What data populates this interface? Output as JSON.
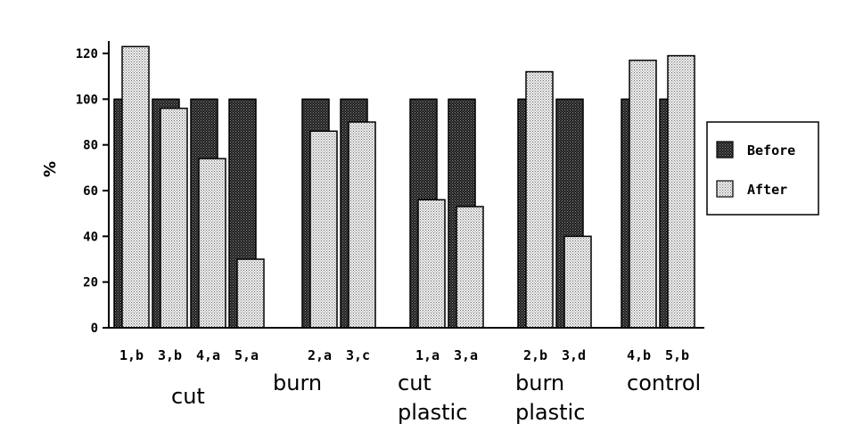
{
  "chart_data": {
    "type": "bar",
    "title": "",
    "xlabel": "",
    "ylabel": "%",
    "ylim": [
      0,
      120
    ],
    "yticks": [
      0,
      20,
      40,
      60,
      80,
      100,
      120
    ],
    "grid": false,
    "legend_position": "right",
    "categories": [
      "1,b",
      "3,b",
      "4,a",
      "5,a",
      "2,a",
      "3,c",
      "1,a",
      "3,a",
      "2,b",
      "3,d",
      "4,b",
      "5,b"
    ],
    "groups": [
      {
        "label_lines": [
          "cut"
        ],
        "categories": [
          "1,b",
          "3,b",
          "4,a",
          "5,a"
        ]
      },
      {
        "label_lines": [
          "burn"
        ],
        "categories": [
          "2,a",
          "3,c"
        ]
      },
      {
        "label_lines": [
          "cut",
          "plastic"
        ],
        "categories": [
          "1,a",
          "3,a"
        ]
      },
      {
        "label_lines": [
          "burn",
          "plastic"
        ],
        "categories": [
          "2,b",
          "3,d"
        ]
      },
      {
        "label_lines": [
          "control"
        ],
        "categories": [
          "4,b",
          "5,b"
        ]
      }
    ],
    "series": [
      {
        "name": "Before",
        "values": [
          100,
          100,
          100,
          100,
          100,
          100,
          100,
          100,
          100,
          100,
          100,
          100
        ]
      },
      {
        "name": "After",
        "values": [
          123,
          96,
          74,
          30,
          86,
          90,
          56,
          53,
          112,
          40,
          117,
          119
        ]
      }
    ],
    "colors": {
      "before": "#3c3c3c",
      "after": "#bdbdbd",
      "axis": "#000000"
    }
  }
}
